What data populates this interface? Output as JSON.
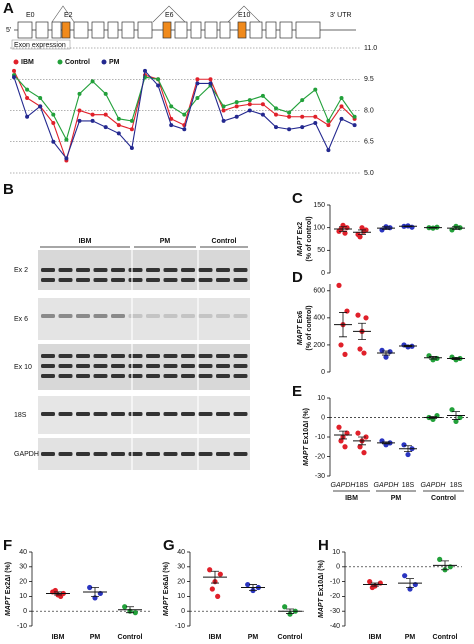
{
  "chart_data": [
    {
      "type": "line",
      "label": "A",
      "diagram_labels": [
        "5'",
        "E0",
        "E2",
        "E6",
        "E10",
        "3' UTR"
      ],
      "caption": "Exon expression",
      "ylim": [
        5,
        11
      ],
      "yticks": [
        {
          "value": 11,
          "label": "11.0"
        },
        {
          "value": 9.5,
          "label": "9.5"
        },
        {
          "value": 8,
          "label": "8.0"
        },
        {
          "value": 6.5,
          "label": "6.5"
        },
        {
          "value": 5,
          "label": "5.0"
        }
      ],
      "series": [
        {
          "name": "IBM",
          "color": "#e0202a",
          "values": [
            9.9,
            8.6,
            8.2,
            7.4,
            5.6,
            8.0,
            7.8,
            7.8,
            7.3,
            7.1,
            9.7,
            9.5,
            7.6,
            7.3,
            9.5,
            9.5,
            8.0,
            8.2,
            8.3,
            8.3,
            7.8,
            7.7,
            7.7,
            7.7,
            7.3,
            8.2,
            7.6
          ]
        },
        {
          "name": "Control",
          "color": "#22a03a",
          "values": [
            9.7,
            9.0,
            8.6,
            7.8,
            6.6,
            8.8,
            9.4,
            8.8,
            7.6,
            7.5,
            9.6,
            9.5,
            8.2,
            7.8,
            8.6,
            9.2,
            8.2,
            8.4,
            8.5,
            8.7,
            8.1,
            7.9,
            8.5,
            9.0,
            7.5,
            8.6,
            7.7
          ]
        },
        {
          "name": "PM",
          "color": "#23288f",
          "values": [
            9.6,
            7.7,
            8.2,
            6.5,
            5.7,
            7.5,
            7.5,
            7.2,
            6.9,
            6.2,
            9.9,
            9.2,
            7.3,
            7.1,
            9.3,
            9.3,
            7.5,
            7.7,
            8.0,
            7.8,
            7.2,
            7.1,
            7.2,
            7.4,
            6.1,
            7.6,
            7.3
          ]
        }
      ]
    },
    {
      "type": "dot",
      "label": "C",
      "y_label": {
        "gene": "MAPT",
        "rest": "Ex2",
        "sub": "(% of control)"
      },
      "ylim": [
        0,
        150
      ],
      "yticks": [
        0,
        50,
        100,
        150
      ],
      "series": [
        {
          "color": "#e0202a",
          "points": [
            92,
            100,
            105,
            97,
            88
          ],
          "mean": 97,
          "sem": 5
        },
        {
          "color": "#e0202a",
          "points": [
            85,
            95,
            100,
            80,
            92
          ],
          "mean": 90,
          "sem": 5
        },
        {
          "color": "#2a35c0",
          "points": [
            95,
            100,
            102
          ],
          "mean": 99,
          "sem": 3
        },
        {
          "color": "#2a35c0",
          "points": [
            103,
            101,
            104
          ],
          "mean": 103,
          "sem": 1
        },
        {
          "color": "#22a03a",
          "points": [
            100,
            101,
            99
          ],
          "mean": 100,
          "sem": 1
        },
        {
          "color": "#22a03a",
          "points": [
            95,
            100,
            103
          ],
          "mean": 99,
          "sem": 3
        }
      ]
    },
    {
      "type": "dot",
      "label": "D",
      "y_label": {
        "gene": "MAPT",
        "rest": "Ex6",
        "sub": "(% of control)"
      },
      "ylim": [
        0,
        650
      ],
      "yticks": [
        0,
        200,
        400,
        600
      ],
      "series": [
        {
          "color": "#e0202a",
          "points": [
            640,
            450,
            350,
            200,
            130
          ],
          "mean": 350,
          "sem": 90
        },
        {
          "color": "#e0202a",
          "points": [
            420,
            400,
            300,
            170,
            140
          ],
          "mean": 300,
          "sem": 60
        },
        {
          "color": "#2a35c0",
          "points": [
            160,
            150,
            110
          ],
          "mean": 140,
          "sem": 15
        },
        {
          "color": "#2a35c0",
          "points": [
            200,
            190,
            185
          ],
          "mean": 192,
          "sem": 5
        },
        {
          "color": "#22a03a",
          "points": [
            120,
            100,
            90
          ],
          "mean": 105,
          "sem": 10
        },
        {
          "color": "#22a03a",
          "points": [
            110,
            100,
            90
          ],
          "mean": 100,
          "sem": 8
        }
      ]
    },
    {
      "type": "dot",
      "label": "E",
      "y_label": {
        "gene": "MAPT",
        "rest": "Ex10ΔI (%)"
      },
      "ylim": [
        -30,
        10
      ],
      "yticks": [
        -30,
        -20,
        -10,
        0,
        10
      ],
      "reference_line": 0,
      "categories": [
        "GAPDH",
        "18S",
        "GAPDH",
        "18S",
        "GAPDH",
        "18S"
      ],
      "group_labels": [
        "IBM",
        "PM",
        "Control"
      ],
      "series": [
        {
          "color": "#e0202a",
          "points": [
            -5,
            -8,
            -10,
            -12,
            -15
          ],
          "mean": -9,
          "sem": 2
        },
        {
          "color": "#e0202a",
          "points": [
            -8,
            -10,
            -12,
            -15,
            -18
          ],
          "mean": -12,
          "sem": 2
        },
        {
          "color": "#2a35c0",
          "points": [
            -12,
            -13,
            -14
          ],
          "mean": -13,
          "sem": 0.5
        },
        {
          "color": "#2a35c0",
          "points": [
            -14,
            -16,
            -19
          ],
          "mean": -16,
          "sem": 1.5
        },
        {
          "color": "#22a03a",
          "points": [
            0,
            1,
            -1
          ],
          "mean": 0,
          "sem": 0.5
        },
        {
          "color": "#22a03a",
          "points": [
            4,
            0,
            -2
          ],
          "mean": 1,
          "sem": 2
        }
      ]
    },
    {
      "type": "dot",
      "label": "F",
      "y_label": {
        "gene": "MAPT",
        "rest": "Ex2ΔI (%)"
      },
      "ylim": [
        -10,
        40
      ],
      "yticks": [
        -10,
        0,
        10,
        20,
        30,
        40
      ],
      "reference_line": 0,
      "categories": [
        "IBM",
        "PM",
        "Control"
      ],
      "series": [
        {
          "color": "#e0202a",
          "points": [
            13,
            12,
            11,
            14,
            10
          ],
          "mean": 12,
          "sem": 1
        },
        {
          "color": "#2a35c0",
          "points": [
            16,
            12,
            9
          ],
          "mean": 13,
          "sem": 3
        },
        {
          "color": "#22a03a",
          "points": [
            3,
            -1,
            0
          ],
          "mean": 1,
          "sem": 2
        }
      ]
    },
    {
      "type": "dot",
      "label": "G",
      "y_label": {
        "gene": "MAPT",
        "rest": "Ex6ΔI (%)"
      },
      "ylim": [
        -10,
        40
      ],
      "yticks": [
        -10,
        0,
        10,
        20,
        30,
        40
      ],
      "reference_line": 0,
      "categories": [
        "IBM",
        "PM",
        "Control"
      ],
      "series": [
        {
          "color": "#e0202a",
          "points": [
            28,
            25,
            20,
            15,
            10
          ],
          "mean": 23,
          "sem": 4
        },
        {
          "color": "#2a35c0",
          "points": [
            18,
            16,
            14
          ],
          "mean": 16,
          "sem": 2
        },
        {
          "color": "#22a03a",
          "points": [
            3,
            0,
            -2
          ],
          "mean": 0,
          "sem": 1.5
        }
      ]
    },
    {
      "type": "dot",
      "label": "H",
      "y_label": {
        "gene": "MAPT",
        "rest": "Ex10ΔI (%)"
      },
      "ylim": [
        -40,
        10
      ],
      "yticks": [
        -40,
        -30,
        -20,
        -10,
        0,
        10
      ],
      "reference_line": 0,
      "categories": [
        "IBM",
        "PM",
        "Control"
      ],
      "series": [
        {
          "color": "#e0202a",
          "points": [
            -10,
            -11,
            -13,
            -14
          ],
          "mean": -12,
          "sem": 1
        },
        {
          "color": "#2a35c0",
          "points": [
            -6,
            -12,
            -15
          ],
          "mean": -11,
          "sem": 3
        },
        {
          "color": "#22a03a",
          "points": [
            5,
            0,
            -2
          ],
          "mean": 1,
          "sem": 3
        }
      ]
    }
  ],
  "gel": {
    "label": "B",
    "groups": [
      "IBM",
      "PM",
      "Control"
    ],
    "rows": [
      "Ex 2",
      "Ex 6",
      "Ex 10",
      "18S",
      "GAPDH"
    ]
  }
}
